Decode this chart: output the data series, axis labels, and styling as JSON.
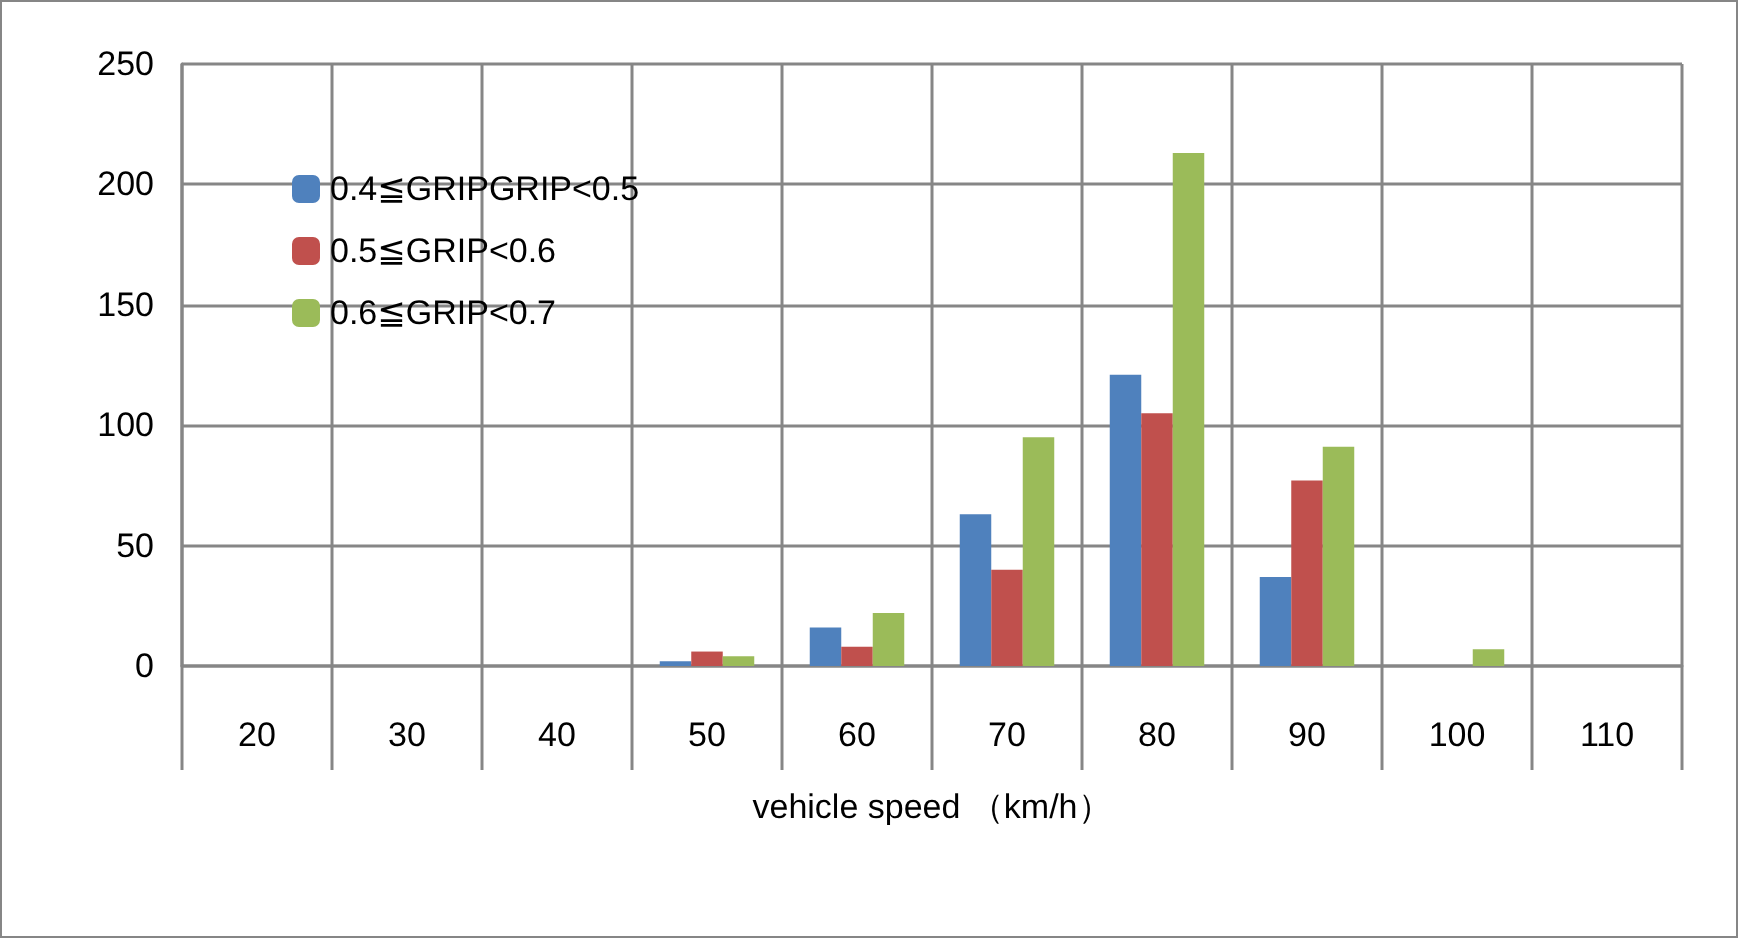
{
  "chart_data": {
    "type": "bar",
    "xlabel": "vehicle speed （km/h）",
    "categories": [
      "20",
      "30",
      "40",
      "50",
      "60",
      "70",
      "80",
      "90",
      "100",
      "110"
    ],
    "series": [
      {
        "name": "0.4≦GRIPGRIP<0.5",
        "color": "#4f81bd",
        "values": [
          0,
          0,
          0,
          2,
          16,
          63,
          121,
          37,
          0,
          0
        ]
      },
      {
        "name": "0.5≦GRIP<0.6",
        "color": "#c0504d",
        "values": [
          0,
          0,
          0,
          6,
          8,
          40,
          105,
          77,
          0,
          0
        ]
      },
      {
        "name": "0.6≦GRIP<0.7",
        "color": "#9bbb59",
        "values": [
          0,
          0,
          0,
          4,
          22,
          95,
          213,
          91,
          7,
          0
        ]
      }
    ],
    "ylim": [
      0,
      250
    ],
    "yticks": [
      0,
      50,
      100,
      150,
      200,
      250
    ],
    "grid": true,
    "legend": "top left"
  }
}
